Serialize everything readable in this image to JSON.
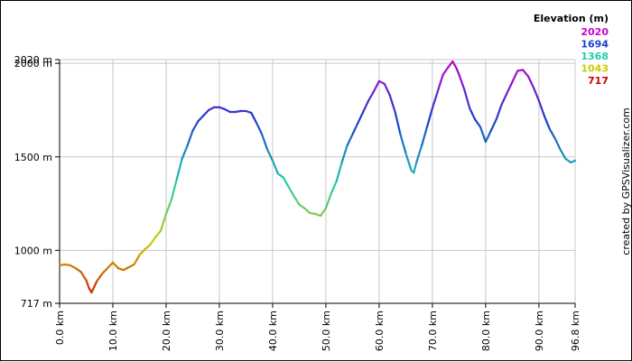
{
  "chart_data": {
    "type": "line",
    "title": "",
    "xlabel": "",
    "ylabel": "",
    "xlim": [
      0,
      96.8
    ],
    "ylim": [
      717,
      2020
    ],
    "x_ticks": [
      "0.0 km",
      "10.0 km",
      "20.0 km",
      "30.0 km",
      "40.0 km",
      "50.0 km",
      "60.0 km",
      "70.0 km",
      "80.0 km",
      "90.0 km",
      "96.8 km"
    ],
    "y_ticks": [
      {
        "value": 717,
        "label": "717 m"
      },
      {
        "value": 1000,
        "label": "1000 m"
      },
      {
        "value": 1500,
        "label": "1500 m"
      },
      {
        "value": 2000,
        "label": "2000 m"
      },
      {
        "value": 2020,
        "label": "2020 m"
      }
    ],
    "grid": true,
    "legend": {
      "title": "Elevation (m)",
      "placement": "top-right",
      "entries": [
        {
          "label": "2020",
          "color": "#cc00cc"
        },
        {
          "label": "1694",
          "color": "#1a3fcc"
        },
        {
          "label": "1368",
          "color": "#22ccaa"
        },
        {
          "label": "1043",
          "color": "#cccc00"
        },
        {
          "label": "717",
          "color": "#cc0000"
        }
      ]
    },
    "credit": "created by GPSVisualizer.com",
    "series": [
      {
        "x": [
          0.0,
          1.0,
          2.0,
          3.0,
          4.0,
          5.0,
          5.5,
          6.0,
          7.0,
          8.0,
          9.0,
          10.0,
          11.0,
          12.0,
          13.0,
          14.0,
          15.0,
          16.0,
          17.0,
          18.0,
          19.0,
          20.0,
          21.0,
          22.0,
          23.0,
          24.0,
          25.0,
          26.0,
          27.0,
          28.0,
          29.0,
          30.0,
          31.0,
          32.0,
          33.0,
          34.0,
          35.0,
          36.0,
          37.0,
          38.0,
          39.0,
          40.0,
          41.0,
          42.0,
          43.0,
          44.0,
          45.0,
          46.0,
          47.0,
          48.0,
          49.0,
          50.0,
          51.0,
          52.0,
          53.0,
          54.0,
          55.0,
          56.0,
          57.0,
          58.0,
          59.0,
          60.0,
          61.0,
          62.0,
          63.0,
          64.0,
          65.0,
          66.0,
          66.5,
          67.0,
          68.0,
          69.0,
          70.0,
          71.0,
          72.0,
          73.0,
          73.8,
          74.5,
          75.0,
          76.0,
          77.0,
          78.0,
          79.0,
          80.0,
          81.0,
          82.0,
          83.0,
          84.0,
          85.0,
          86.0,
          87.0,
          88.0,
          89.0,
          90.0,
          91.0,
          92.0,
          93.0,
          94.0,
          95.0,
          96.0,
          96.8
        ],
        "y": [
          920,
          925,
          920,
          905,
          885,
          840,
          800,
          775,
          835,
          875,
          905,
          935,
          905,
          895,
          910,
          925,
          975,
          1005,
          1030,
          1070,
          1105,
          1195,
          1270,
          1380,
          1490,
          1560,
          1640,
          1690,
          1720,
          1750,
          1765,
          1765,
          1755,
          1740,
          1740,
          1745,
          1745,
          1735,
          1680,
          1620,
          1540,
          1480,
          1410,
          1390,
          1340,
          1290,
          1245,
          1225,
          1200,
          1195,
          1185,
          1225,
          1305,
          1370,
          1470,
          1560,
          1620,
          1680,
          1740,
          1800,
          1850,
          1905,
          1890,
          1830,
          1740,
          1620,
          1520,
          1430,
          1415,
          1470,
          1560,
          1660,
          1760,
          1850,
          1940,
          1980,
          2010,
          1975,
          1940,
          1860,
          1760,
          1700,
          1660,
          1580,
          1640,
          1700,
          1780,
          1840,
          1900,
          1960,
          1965,
          1930,
          1870,
          1800,
          1720,
          1650,
          1600,
          1540,
          1490,
          1470,
          1480
        ]
      }
    ]
  }
}
